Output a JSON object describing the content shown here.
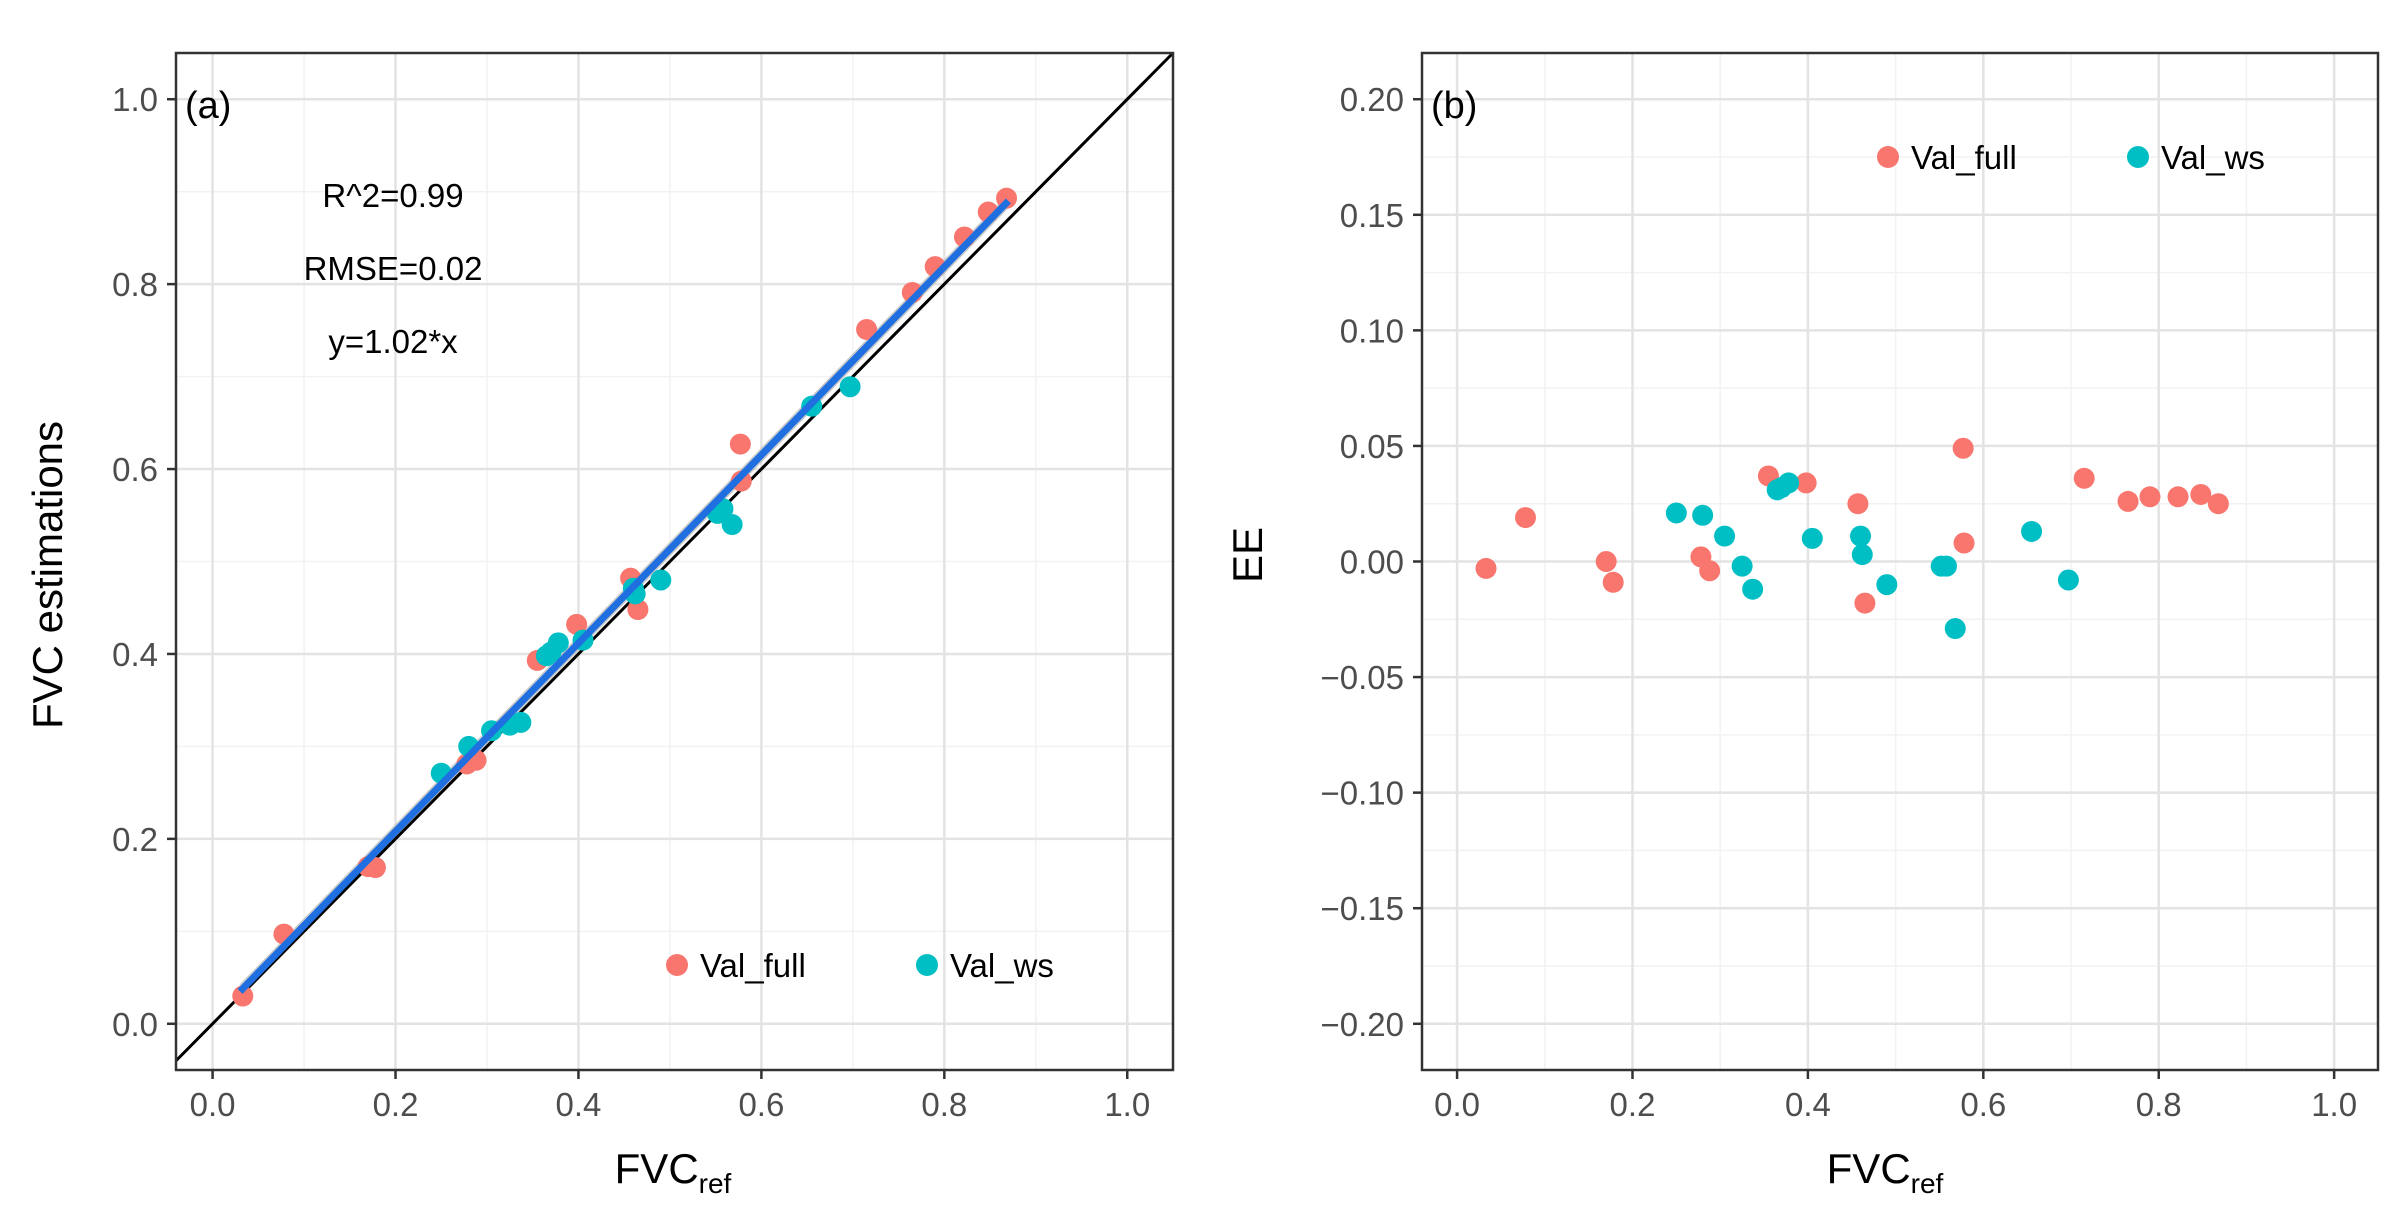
{
  "colors": {
    "val_full": "#F8766D",
    "val_ws": "#00BFC4",
    "fit_line": "#1f6fe0",
    "ci_band": "#bdbdbd",
    "identity_line": "#000000",
    "grid_major": "#e3e3e3",
    "grid_minor": "#f2f2f2",
    "panel_border": "#333333",
    "tick_text": "#4d4d4d"
  },
  "chart_data": [
    {
      "type": "scatter",
      "panel_label": "(a)",
      "xlabel": "FVC",
      "xlabel_sub": "ref",
      "ylabel": "FVC estimations",
      "xlim": [
        -0.04,
        1.05
      ],
      "ylim": [
        -0.05,
        1.05
      ],
      "x_ticks": [
        0.0,
        0.2,
        0.4,
        0.6,
        0.8,
        1.0
      ],
      "x_tick_labels": [
        "0.0",
        "0.2",
        "0.4",
        "0.6",
        "0.8",
        "1.0"
      ],
      "y_ticks": [
        0.0,
        0.2,
        0.4,
        0.6,
        0.8,
        1.0
      ],
      "y_tick_labels": [
        "0.0",
        "0.2",
        "0.4",
        "0.6",
        "0.8",
        "1.0"
      ],
      "grid": true,
      "annotations": [
        "R^2=0.99",
        "RMSE=0.02",
        "y=1.02*x"
      ],
      "identity_line": {
        "x": [
          -0.05,
          1.05
        ],
        "y": [
          -0.05,
          1.05
        ]
      },
      "fit_line": {
        "x": [
          0.03,
          0.87
        ],
        "y": [
          0.035,
          0.89
        ]
      },
      "legend": {
        "position": "bottom-right",
        "entries": [
          "Val_full",
          "Val_ws"
        ]
      },
      "series": [
        {
          "name": "Val_full",
          "x": [
            0.033,
            0.078,
            0.17,
            0.178,
            0.278,
            0.288,
            0.355,
            0.398,
            0.457,
            0.465,
            0.577,
            0.578,
            0.715,
            0.765,
            0.79,
            0.822,
            0.848,
            0.868
          ],
          "y": [
            0.03,
            0.097,
            0.17,
            0.169,
            0.281,
            0.285,
            0.393,
            0.432,
            0.482,
            0.448,
            0.627,
            0.587,
            0.751,
            0.791,
            0.819,
            0.851,
            0.878,
            0.893
          ]
        },
        {
          "name": "Val_ws",
          "x": [
            0.25,
            0.28,
            0.305,
            0.325,
            0.337,
            0.365,
            0.37,
            0.378,
            0.405,
            0.46,
            0.462,
            0.49,
            0.552,
            0.558,
            0.568,
            0.655,
            0.697
          ],
          "y": [
            0.271,
            0.3,
            0.317,
            0.323,
            0.326,
            0.398,
            0.402,
            0.412,
            0.415,
            0.471,
            0.465,
            0.48,
            0.552,
            0.557,
            0.54,
            0.668,
            0.689
          ]
        }
      ]
    },
    {
      "type": "scatter",
      "panel_label": "(b)",
      "xlabel": "FVC",
      "xlabel_sub": "ref",
      "ylabel": "EE",
      "xlim": [
        -0.04,
        1.05
      ],
      "ylim": [
        -0.22,
        0.22
      ],
      "x_ticks": [
        0.0,
        0.2,
        0.4,
        0.6,
        0.8,
        1.0
      ],
      "x_tick_labels": [
        "0.0",
        "0.2",
        "0.4",
        "0.6",
        "0.8",
        "1.0"
      ],
      "y_ticks": [
        -0.2,
        -0.15,
        -0.1,
        -0.05,
        0.0,
        0.05,
        0.1,
        0.15,
        0.2
      ],
      "y_tick_labels": [
        "−0.20",
        "−0.15",
        "−0.10",
        "−0.05",
        "0.00",
        "0.05",
        "0.10",
        "0.15",
        "0.20"
      ],
      "grid": true,
      "legend": {
        "position": "top-right",
        "entries": [
          "Val_full",
          "Val_ws"
        ]
      },
      "series": [
        {
          "name": "Val_full",
          "x": [
            0.033,
            0.078,
            0.17,
            0.178,
            0.278,
            0.288,
            0.355,
            0.398,
            0.457,
            0.465,
            0.577,
            0.578,
            0.715,
            0.765,
            0.79,
            0.822,
            0.848,
            0.868
          ],
          "y": [
            -0.003,
            0.019,
            0.0,
            -0.009,
            0.002,
            -0.004,
            0.037,
            0.034,
            0.025,
            -0.018,
            0.049,
            0.008,
            0.036,
            0.026,
            0.028,
            0.028,
            0.029,
            0.025
          ]
        },
        {
          "name": "Val_ws",
          "x": [
            0.25,
            0.28,
            0.305,
            0.325,
            0.337,
            0.365,
            0.37,
            0.378,
            0.405,
            0.46,
            0.462,
            0.49,
            0.552,
            0.558,
            0.568,
            0.655,
            0.697
          ],
          "y": [
            0.021,
            0.02,
            0.011,
            -0.002,
            -0.012,
            0.031,
            0.032,
            0.034,
            0.01,
            0.011,
            0.003,
            -0.01,
            -0.002,
            -0.002,
            -0.029,
            0.013,
            -0.008
          ]
        }
      ]
    }
  ]
}
